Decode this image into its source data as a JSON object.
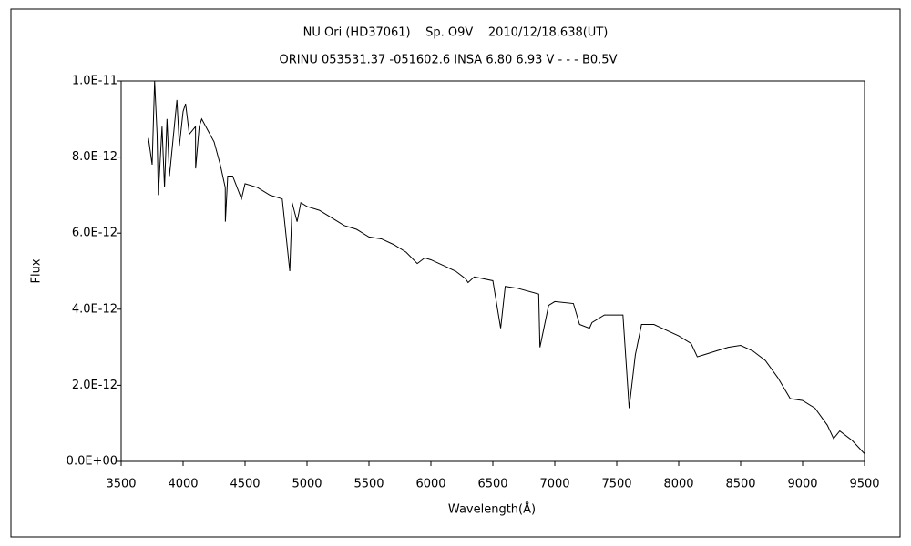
{
  "chart_data": {
    "type": "line",
    "title": "NU Ori (HD37061)    Sp. O9V    2010/12/18.638(UT)",
    "subtitle": "ORINU 053531.37 -051602.6 INSA 6.80 6.93 V - - - B0.5V",
    "xlabel": "Wavelength(Å)",
    "ylabel": "Flux",
    "color": "#000000",
    "x": [
      3720,
      3750,
      3770,
      3790,
      3800,
      3830,
      3850,
      3870,
      3890,
      3920,
      3950,
      3970,
      4000,
      4020,
      4050,
      4100,
      4101,
      4130,
      4150,
      4200,
      4250,
      4300,
      4340,
      4341,
      4360,
      4400,
      4471,
      4500,
      4600,
      4700,
      4800,
      4861,
      4880,
      4920,
      4950,
      5000,
      5100,
      5200,
      5300,
      5400,
      5500,
      5600,
      5700,
      5800,
      5890,
      5950,
      6000,
      6100,
      6200,
      6280,
      6300,
      6350,
      6500,
      6563,
      6600,
      6700,
      6870,
      6880,
      6950,
      7000,
      7150,
      7200,
      7280,
      7300,
      7400,
      7550,
      7600,
      7650,
      7700,
      7800,
      7900,
      8000,
      8100,
      8150,
      8200,
      8300,
      8400,
      8500,
      8600,
      8700,
      8800,
      8900,
      9000,
      9100,
      9200,
      9250,
      9300,
      9400,
      9500
    ],
    "values": [
      8.5e-12,
      7.8e-12,
      1e-11,
      8.6e-12,
      7e-12,
      8.8e-12,
      7.2e-12,
      9e-12,
      7.5e-12,
      8.5e-12,
      9.5e-12,
      8.3e-12,
      9.2e-12,
      9.4e-12,
      8.6e-12,
      8.8e-12,
      7.7e-12,
      8.8e-12,
      9e-12,
      8.7e-12,
      8.4e-12,
      7.8e-12,
      7.2e-12,
      6.3e-12,
      7.5e-12,
      7.5e-12,
      6.9e-12,
      7.3e-12,
      7.2e-12,
      7e-12,
      6.9e-12,
      5e-12,
      6.8e-12,
      6.3e-12,
      6.8e-12,
      6.7e-12,
      6.6e-12,
      6.4e-12,
      6.2e-12,
      6.1e-12,
      5.9e-12,
      5.85e-12,
      5.7e-12,
      5.5e-12,
      5.2e-12,
      5.35e-12,
      5.3e-12,
      5.15e-12,
      5e-12,
      4.8e-12,
      4.7e-12,
      4.85e-12,
      4.75e-12,
      3.5e-12,
      4.6e-12,
      4.55e-12,
      4.4e-12,
      3e-12,
      4.1e-12,
      4.2e-12,
      4.15e-12,
      3.6e-12,
      3.5e-12,
      3.65e-12,
      3.85e-12,
      3.85e-12,
      1.4e-12,
      2.8e-12,
      3.6e-12,
      3.6e-12,
      3.45e-12,
      3.3e-12,
      3.1e-12,
      2.75e-12,
      2.8e-12,
      2.9e-12,
      3e-12,
      3.05e-12,
      2.9e-12,
      2.65e-12,
      2.2e-12,
      1.65e-12,
      1.6e-12,
      1.4e-12,
      9.5e-13,
      6e-13,
      8e-13,
      5.5e-13,
      2e-13
    ],
    "xlim": [
      3500,
      9500
    ],
    "xticks": [
      3500,
      4000,
      4500,
      5000,
      5500,
      6000,
      6500,
      7000,
      7500,
      8000,
      8500,
      9000,
      9500
    ],
    "ylim": [
      0,
      1e-11
    ],
    "yticks": [
      {
        "value": 0,
        "label": "0.0E+00"
      },
      {
        "value": 2e-12,
        "label": "2.0E-12"
      },
      {
        "value": 4e-12,
        "label": "4.0E-12"
      },
      {
        "value": 6e-12,
        "label": "6.0E-12"
      },
      {
        "value": 8e-12,
        "label": "8.0E-12"
      },
      {
        "value": 1e-11,
        "label": "1.0E-11"
      }
    ]
  }
}
